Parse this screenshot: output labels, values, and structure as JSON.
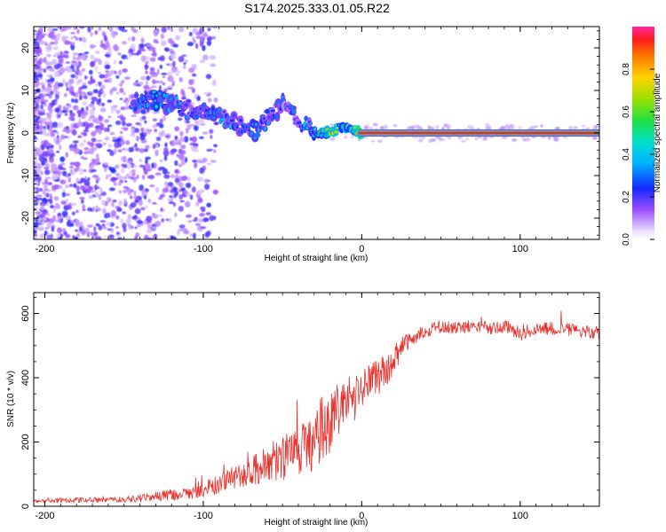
{
  "title": "S174.2025.333.01.05.R22",
  "colors": {
    "snr_line": "#e8322e",
    "ridge_core": "#ff2d6e",
    "ridge_edge": "#22c77a",
    "speckle": "#7a2cf0",
    "axis": "#000000"
  },
  "chart_data": [
    {
      "id": "spectrogram",
      "type": "heatmap",
      "title": "S174.2025.333.01.05.R22",
      "xlabel": "Height of straight line (km)",
      "ylabel": "Frequency (Hz)",
      "xlim": [
        -207,
        150
      ],
      "ylim": [
        -25,
        25
      ],
      "x_ticks": [
        -200,
        -100,
        0,
        100
      ],
      "x_tick_labels": [
        "-200",
        "-100",
        "0",
        "100"
      ],
      "y_ticks": [
        20,
        10,
        0,
        -10,
        -20
      ],
      "y_tick_labels": [
        "20",
        "10",
        "0",
        "-10",
        "-20"
      ],
      "ridge": [
        {
          "x": -145,
          "y": 6.5,
          "a": 0.35
        },
        {
          "x": -135,
          "y": 8.5,
          "a": 0.45
        },
        {
          "x": -125,
          "y": 7.0,
          "a": 0.4
        },
        {
          "x": -115,
          "y": 6.0,
          "a": 0.35
        },
        {
          "x": -100,
          "y": 5.0,
          "a": 0.35
        },
        {
          "x": -90,
          "y": 4.0,
          "a": 0.35
        },
        {
          "x": -80,
          "y": 2.5,
          "a": 0.4
        },
        {
          "x": -70,
          "y": 0.0,
          "a": 0.4
        },
        {
          "x": -60,
          "y": 3.0,
          "a": 0.35
        },
        {
          "x": -50,
          "y": 7.0,
          "a": 0.3
        },
        {
          "x": -45,
          "y": 5.0,
          "a": 0.3
        },
        {
          "x": -38,
          "y": 2.0,
          "a": 0.35
        },
        {
          "x": -28,
          "y": 0.0,
          "a": 0.45
        },
        {
          "x": -20,
          "y": 0.2,
          "a": 0.7
        },
        {
          "x": -12,
          "y": 1.8,
          "a": 0.6
        },
        {
          "x": -5,
          "y": 0.6,
          "a": 0.8
        },
        {
          "x": 0,
          "y": 0.2,
          "a": 0.85
        },
        {
          "x": 20,
          "y": 0.0,
          "a": 0.95
        },
        {
          "x": 60,
          "y": 0.0,
          "a": 0.95
        },
        {
          "x": 100,
          "y": 0.0,
          "a": 0.95
        },
        {
          "x": 150,
          "y": 0.0,
          "a": 0.95
        }
      ]
    },
    {
      "id": "colorbar",
      "type": "heatmap",
      "label": "Normalized spectral amplitude",
      "range": [
        0,
        1
      ],
      "ticks": [
        0.0,
        0.2,
        0.4,
        0.6,
        0.8
      ],
      "tick_labels": [
        "0.0",
        "0.2",
        "0.4",
        "0.6",
        "0.8"
      ]
    },
    {
      "id": "snr",
      "type": "line",
      "xlabel": "Height of straight line (km)",
      "ylabel": "SNR (10 * v/v)",
      "xlim": [
        -207,
        150
      ],
      "ylim": [
        0,
        665
      ],
      "x_ticks": [
        -200,
        -100,
        0,
        100
      ],
      "x_tick_labels": [
        "-200",
        "-100",
        "0",
        "100"
      ],
      "y_ticks": [
        0,
        200,
        400,
        600
      ],
      "y_tick_labels": [
        "0",
        "200",
        "400",
        "600"
      ],
      "series": [
        {
          "name": "SNR",
          "x": [
            -207,
            -190,
            -170,
            -150,
            -140,
            -130,
            -120,
            -110,
            -100,
            -90,
            -80,
            -70,
            -60,
            -50,
            -40,
            -30,
            -25,
            -20,
            -15,
            -10,
            -5,
            0,
            5,
            10,
            15,
            20,
            25,
            30,
            40,
            50,
            60,
            70,
            80,
            90,
            100,
            110,
            120,
            130,
            140,
            150
          ],
          "y": [
            15,
            18,
            20,
            22,
            25,
            30,
            35,
            40,
            50,
            70,
            90,
            110,
            130,
            150,
            170,
            190,
            250,
            280,
            300,
            310,
            330,
            360,
            380,
            400,
            420,
            450,
            490,
            520,
            545,
            560,
            555,
            560,
            555,
            560,
            540,
            550,
            555,
            550,
            545,
            540
          ],
          "noise": [
            6,
            8,
            8,
            10,
            12,
            15,
            18,
            20,
            25,
            30,
            35,
            45,
            60,
            70,
            80,
            90,
            110,
            120,
            100,
            90,
            80,
            70,
            70,
            60,
            50,
            40,
            35,
            25,
            20,
            20,
            20,
            20,
            20,
            20,
            25,
            20,
            20,
            20,
            20,
            20
          ]
        }
      ]
    }
  ]
}
